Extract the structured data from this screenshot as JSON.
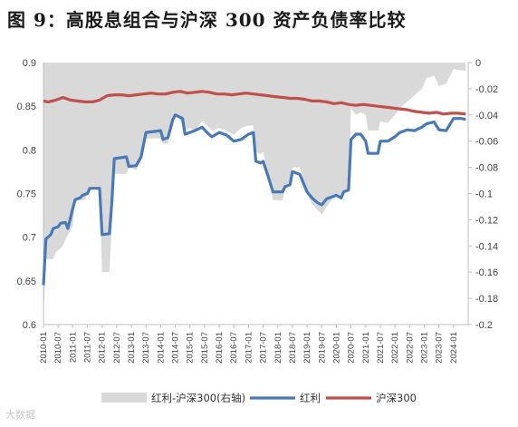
{
  "title": "图 9：高股息组合与沪深 300 资产负债率比较",
  "watermark": "大数据",
  "chart_data": {
    "type": "line",
    "legend_position": "bottom",
    "grid": false,
    "x_ticks": [
      "2010-01",
      "2010-07",
      "2011-01",
      "2011-07",
      "2012-01",
      "2012-07",
      "2013-01",
      "2013-07",
      "2014-01",
      "2014-07",
      "2015-01",
      "2015-07",
      "2016-01",
      "2016-07",
      "2017-01",
      "2017-07",
      "2018-01",
      "2018-07",
      "2019-01",
      "2019-07",
      "2020-01",
      "2020-07",
      "2021-01",
      "2021-07",
      "2022-01",
      "2022-07",
      "2023-01",
      "2023-07",
      "2024-01"
    ],
    "y_left": {
      "min": 0.6,
      "max": 0.9,
      "ticks": [
        "0.6",
        "0.65",
        "0.7",
        "0.75",
        "0.8",
        "0.85",
        "0.9"
      ]
    },
    "y_right": {
      "min": -0.2,
      "max": 0,
      "ticks": [
        "-0.2",
        "-0.18",
        "-0.16",
        "-0.14",
        "-0.12",
        "-0.1",
        "-0.08",
        "-0.06",
        "-0.04",
        "-0.02",
        "0"
      ]
    },
    "series": [
      {
        "name": "红利-沪深300(右轴)",
        "type": "area",
        "axis": "right",
        "color": "#d9d9d9",
        "points": [
          [
            "2010-01",
            -0.195
          ],
          [
            "2010-02",
            -0.15
          ],
          [
            "2010-05",
            -0.15
          ],
          [
            "2010-06",
            -0.145
          ],
          [
            "2010-09",
            -0.14
          ],
          [
            "2010-10",
            -0.135
          ],
          [
            "2011-01",
            -0.125
          ],
          [
            "2011-02",
            -0.105
          ],
          [
            "2011-06",
            -0.105
          ],
          [
            "2011-07",
            -0.1
          ],
          [
            "2011-10",
            -0.095
          ],
          [
            "2011-12",
            -0.098
          ],
          [
            "2012-01",
            -0.16
          ],
          [
            "2012-04",
            -0.16
          ],
          [
            "2012-05",
            -0.125
          ],
          [
            "2012-06",
            -0.085
          ],
          [
            "2012-11",
            -0.085
          ],
          [
            "2012-12",
            -0.08
          ],
          [
            "2013-03",
            -0.082
          ],
          [
            "2013-05",
            -0.075
          ],
          [
            "2013-07",
            -0.058
          ],
          [
            "2014-01",
            -0.058
          ],
          [
            "2014-02",
            -0.062
          ],
          [
            "2014-04",
            -0.062
          ],
          [
            "2014-06",
            -0.045
          ],
          [
            "2014-08",
            -0.04
          ],
          [
            "2014-10",
            -0.048
          ],
          [
            "2014-11",
            -0.052
          ],
          [
            "2015-01",
            -0.05
          ],
          [
            "2015-03",
            -0.052
          ],
          [
            "2015-06",
            -0.045
          ],
          [
            "2015-08",
            -0.048
          ],
          [
            "2015-10",
            -0.052
          ],
          [
            "2016-01",
            -0.05
          ],
          [
            "2016-04",
            -0.052
          ],
          [
            "2016-07",
            -0.055
          ],
          [
            "2016-10",
            -0.05
          ],
          [
            "2017-01",
            -0.048
          ],
          [
            "2017-03",
            -0.048
          ],
          [
            "2017-04",
            -0.068
          ],
          [
            "2017-06",
            -0.07
          ],
          [
            "2017-07",
            -0.068
          ],
          [
            "2017-09",
            -0.085
          ],
          [
            "2017-11",
            -0.105
          ],
          [
            "2018-03",
            -0.105
          ],
          [
            "2018-04",
            -0.095
          ],
          [
            "2018-06",
            -0.093
          ],
          [
            "2018-07",
            -0.08
          ],
          [
            "2018-10",
            -0.08
          ],
          [
            "2019-01",
            -0.1
          ],
          [
            "2019-03",
            -0.108
          ],
          [
            "2019-05",
            -0.112
          ],
          [
            "2019-07",
            -0.116
          ],
          [
            "2019-09",
            -0.11
          ],
          [
            "2019-11",
            -0.105
          ],
          [
            "2020-01",
            -0.1
          ],
          [
            "2020-03",
            -0.104
          ],
          [
            "2020-04",
            -0.098
          ],
          [
            "2020-06",
            -0.096
          ],
          [
            "2020-07",
            -0.035
          ],
          [
            "2020-09",
            -0.04
          ],
          [
            "2020-11",
            -0.038
          ],
          [
            "2021-01",
            -0.04
          ],
          [
            "2021-02",
            -0.052
          ],
          [
            "2021-06",
            -0.052
          ],
          [
            "2021-07",
            -0.045
          ],
          [
            "2021-10",
            -0.046
          ],
          [
            "2022-01",
            -0.04
          ],
          [
            "2022-03",
            -0.035
          ],
          [
            "2022-06",
            -0.03
          ],
          [
            "2022-09",
            -0.025
          ],
          [
            "2022-12",
            -0.02
          ],
          [
            "2023-02",
            -0.012
          ],
          [
            "2023-05",
            -0.01
          ],
          [
            "2023-07",
            -0.018
          ],
          [
            "2023-10",
            -0.016
          ],
          [
            "2024-01",
            -0.005
          ],
          [
            "2024-04",
            -0.006
          ],
          [
            "2024-06",
            -0.006
          ]
        ]
      },
      {
        "name": "红利",
        "type": "line",
        "axis": "left",
        "color": "#4a7ab5",
        "points": [
          [
            "2010-01",
            0.645
          ],
          [
            "2010-02",
            0.698
          ],
          [
            "2010-04",
            0.703
          ],
          [
            "2010-05",
            0.71
          ],
          [
            "2010-07",
            0.712
          ],
          [
            "2010-08",
            0.716
          ],
          [
            "2010-10",
            0.717
          ],
          [
            "2010-11",
            0.71
          ],
          [
            "2011-01",
            0.733
          ],
          [
            "2011-02",
            0.743
          ],
          [
            "2011-04",
            0.745
          ],
          [
            "2011-05",
            0.748
          ],
          [
            "2011-07",
            0.75
          ],
          [
            "2011-08",
            0.756
          ],
          [
            "2011-12",
            0.756
          ],
          [
            "2012-01",
            0.703
          ],
          [
            "2012-04",
            0.704
          ],
          [
            "2012-05",
            0.74
          ],
          [
            "2012-06",
            0.79
          ],
          [
            "2012-11",
            0.792
          ],
          [
            "2012-12",
            0.781
          ],
          [
            "2013-03",
            0.782
          ],
          [
            "2013-05",
            0.792
          ],
          [
            "2013-07",
            0.82
          ],
          [
            "2014-01",
            0.822
          ],
          [
            "2014-02",
            0.812
          ],
          [
            "2014-04",
            0.814
          ],
          [
            "2014-06",
            0.835
          ],
          [
            "2014-07",
            0.84
          ],
          [
            "2014-10",
            0.836
          ],
          [
            "2014-11",
            0.818
          ],
          [
            "2015-01",
            0.82
          ],
          [
            "2015-03",
            0.822
          ],
          [
            "2015-06",
            0.826
          ],
          [
            "2015-08",
            0.82
          ],
          [
            "2015-10",
            0.815
          ],
          [
            "2016-01",
            0.82
          ],
          [
            "2016-04",
            0.817
          ],
          [
            "2016-07",
            0.81
          ],
          [
            "2016-10",
            0.812
          ],
          [
            "2017-01",
            0.818
          ],
          [
            "2017-03",
            0.82
          ],
          [
            "2017-04",
            0.787
          ],
          [
            "2017-06",
            0.785
          ],
          [
            "2017-07",
            0.787
          ],
          [
            "2017-09",
            0.77
          ],
          [
            "2017-11",
            0.752
          ],
          [
            "2018-03",
            0.752
          ],
          [
            "2018-04",
            0.758
          ],
          [
            "2018-06",
            0.76
          ],
          [
            "2018-07",
            0.775
          ],
          [
            "2018-10",
            0.772
          ],
          [
            "2019-01",
            0.752
          ],
          [
            "2019-03",
            0.745
          ],
          [
            "2019-05",
            0.74
          ],
          [
            "2019-07",
            0.737
          ],
          [
            "2019-09",
            0.744
          ],
          [
            "2019-11",
            0.746
          ],
          [
            "2020-01",
            0.748
          ],
          [
            "2020-03",
            0.745
          ],
          [
            "2020-04",
            0.752
          ],
          [
            "2020-06",
            0.754
          ],
          [
            "2020-07",
            0.812
          ],
          [
            "2020-09",
            0.818
          ],
          [
            "2020-11",
            0.818
          ],
          [
            "2021-01",
            0.81
          ],
          [
            "2021-02",
            0.796
          ],
          [
            "2021-06",
            0.796
          ],
          [
            "2021-07",
            0.81
          ],
          [
            "2021-10",
            0.81
          ],
          [
            "2022-01",
            0.815
          ],
          [
            "2022-03",
            0.82
          ],
          [
            "2022-06",
            0.823
          ],
          [
            "2022-09",
            0.822
          ],
          [
            "2022-12",
            0.826
          ],
          [
            "2023-02",
            0.83
          ],
          [
            "2023-05",
            0.832
          ],
          [
            "2023-07",
            0.823
          ],
          [
            "2023-10",
            0.822
          ],
          [
            "2024-01",
            0.836
          ],
          [
            "2024-04",
            0.836
          ],
          [
            "2024-06",
            0.835
          ]
        ]
      },
      {
        "name": "沪深300",
        "type": "line",
        "axis": "left",
        "color": "#c0504d",
        "points": [
          [
            "2010-01",
            0.856
          ],
          [
            "2010-03",
            0.855
          ],
          [
            "2010-06",
            0.857
          ],
          [
            "2010-09",
            0.86
          ],
          [
            "2010-12",
            0.857
          ],
          [
            "2011-03",
            0.856
          ],
          [
            "2011-06",
            0.855
          ],
          [
            "2011-09",
            0.855
          ],
          [
            "2011-12",
            0.857
          ],
          [
            "2012-03",
            0.862
          ],
          [
            "2012-06",
            0.863
          ],
          [
            "2012-09",
            0.863
          ],
          [
            "2012-12",
            0.862
          ],
          [
            "2013-03",
            0.863
          ],
          [
            "2013-06",
            0.864
          ],
          [
            "2013-09",
            0.865
          ],
          [
            "2013-12",
            0.864
          ],
          [
            "2014-03",
            0.864
          ],
          [
            "2014-06",
            0.866
          ],
          [
            "2014-09",
            0.867
          ],
          [
            "2014-12",
            0.865
          ],
          [
            "2015-03",
            0.866
          ],
          [
            "2015-06",
            0.867
          ],
          [
            "2015-09",
            0.866
          ],
          [
            "2015-12",
            0.864
          ],
          [
            "2016-03",
            0.864
          ],
          [
            "2016-06",
            0.863
          ],
          [
            "2016-09",
            0.864
          ],
          [
            "2016-12",
            0.865
          ],
          [
            "2017-03",
            0.864
          ],
          [
            "2017-06",
            0.863
          ],
          [
            "2017-09",
            0.862
          ],
          [
            "2017-12",
            0.861
          ],
          [
            "2018-03",
            0.86
          ],
          [
            "2018-06",
            0.859
          ],
          [
            "2018-09",
            0.859
          ],
          [
            "2018-12",
            0.858
          ],
          [
            "2019-03",
            0.856
          ],
          [
            "2019-06",
            0.856
          ],
          [
            "2019-09",
            0.855
          ],
          [
            "2019-12",
            0.853
          ],
          [
            "2020-03",
            0.854
          ],
          [
            "2020-06",
            0.852
          ],
          [
            "2020-09",
            0.851
          ],
          [
            "2020-12",
            0.852
          ],
          [
            "2021-03",
            0.851
          ],
          [
            "2021-06",
            0.85
          ],
          [
            "2021-09",
            0.849
          ],
          [
            "2021-12",
            0.848
          ],
          [
            "2022-03",
            0.847
          ],
          [
            "2022-06",
            0.846
          ],
          [
            "2022-09",
            0.844
          ],
          [
            "2022-12",
            0.843
          ],
          [
            "2023-03",
            0.842
          ],
          [
            "2023-06",
            0.843
          ],
          [
            "2023-09",
            0.841
          ],
          [
            "2023-12",
            0.842
          ],
          [
            "2024-03",
            0.842
          ],
          [
            "2024-06",
            0.841
          ]
        ]
      }
    ]
  }
}
